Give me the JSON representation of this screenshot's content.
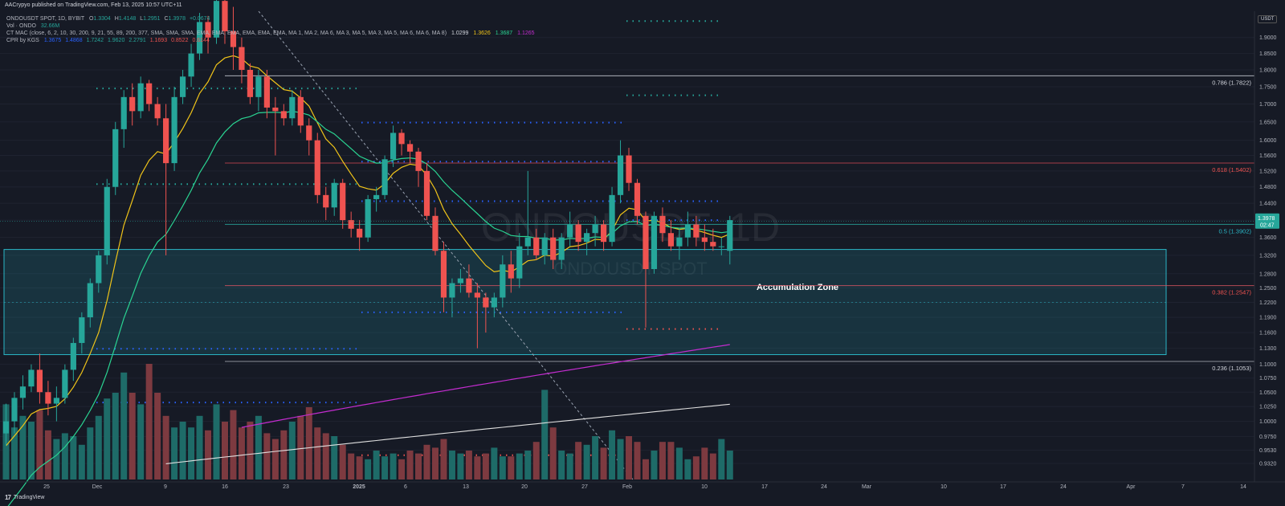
{
  "header": {
    "published": "AACrypyo published on TradingView.com, Feb 13, 2025 10:57 UTC+11",
    "symbol_line": "ONDOUSDT SPOT, 1D, BYBIT",
    "ohlc": {
      "o_label": "O",
      "o": "1.3304",
      "h_label": "H",
      "h": "1.4148",
      "l_label": "L",
      "l": "1.2951",
      "c_label": "C",
      "c": "1.3978",
      "chg": "+0.0674"
    },
    "vol_line": "Vol · ONDO",
    "vol_value": "32.66M",
    "macd_line": "CT MAC (close, 6, 2, 10, 30, 200, 9, 21, 55, 89, 200, 377, SMA, SMA, SMA, EMA, EMA, EMA, EMA, EMA, EMA, MA 1, MA 2, MA 6, MA 3, MA 5, MA 3, MA 5, MA 6, MA 6, MA 8)",
    "macd_values": [
      "1.0299",
      "1.3626",
      "1.3687",
      "1.1265"
    ],
    "cpr_line": "CPR by KGS",
    "cpr_values": [
      "1.3675",
      "1.4868",
      "1.7242",
      "1.9620",
      "2.2791",
      "1.1693",
      "0.8522",
      "0.6144"
    ]
  },
  "usdt_badge": "USDT",
  "watermark": {
    "main": "ONDOUSDT, 1D",
    "sub": "ONDOUSDT SPOT"
  },
  "zone_label": "Accumulation Zone",
  "branding": "TradingView",
  "price_tag": {
    "price": "1.3978",
    "countdown": "02:47",
    "color": "#26a69a"
  },
  "colors": {
    "bg": "#161a25",
    "up": "#26a69a",
    "down": "#ef5350",
    "up_vol": "#1e6b68",
    "down_vol": "#7d3a40",
    "ema_fast": "#f0c419",
    "ema_mid": "#2ad492",
    "ma200": "#c32ccf",
    "ma377": "#e0e0e0",
    "zone": "#1fa7b8",
    "trendline": "#9aa3b2",
    "fib_line": "#a0a4ad",
    "fib_0618": "#c0434d",
    "fib_0382": "#d25460",
    "fib_0786": "#c8ccd4"
  },
  "chart_data": {
    "type": "candlestick",
    "title": "ONDOUSDT SPOT, 1D, BYBIT",
    "y_axis": {
      "scale": "log",
      "ticks": [
        "1.9000",
        "1.8500",
        "1.8000",
        "1.7500",
        "1.7000",
        "1.6500",
        "1.6000",
        "1.5600",
        "1.5200",
        "1.4800",
        "1.4400",
        "1.4000",
        "1.3600",
        "1.3200",
        "1.2800",
        "1.2500",
        "1.2200",
        "1.1900",
        "1.1600",
        "1.1300",
        "1.1000",
        "1.0750",
        "1.0500",
        "1.0250",
        "1.0000",
        "0.9750",
        "0.9530",
        "0.9320"
      ]
    },
    "x_axis": {
      "ticks": [
        "25",
        "Dec",
        "9",
        "16",
        "23",
        "2025",
        "6",
        "13",
        "20",
        "27",
        "Feb",
        "10",
        "17",
        "24",
        "Mar",
        "10",
        "17",
        "24",
        "Apr",
        "7",
        "14"
      ]
    },
    "ohlc": [
      [
        0.98,
        1.03,
        0.96,
        1.0
      ],
      [
        1.0,
        1.05,
        0.98,
        1.04
      ],
      [
        1.04,
        1.08,
        1.02,
        1.06
      ],
      [
        1.06,
        1.1,
        1.05,
        1.09
      ],
      [
        1.09,
        1.12,
        1.03,
        1.05
      ],
      [
        1.05,
        1.07,
        1.01,
        1.03
      ],
      [
        1.03,
        1.06,
        1.0,
        1.04
      ],
      [
        1.04,
        1.1,
        1.03,
        1.09
      ],
      [
        1.09,
        1.15,
        1.07,
        1.14
      ],
      [
        1.14,
        1.2,
        1.12,
        1.19
      ],
      [
        1.19,
        1.27,
        1.17,
        1.26
      ],
      [
        1.26,
        1.33,
        1.24,
        1.32
      ],
      [
        1.32,
        1.5,
        1.3,
        1.48
      ],
      [
        1.48,
        1.65,
        1.46,
        1.63
      ],
      [
        1.63,
        1.74,
        1.58,
        1.72
      ],
      [
        1.72,
        1.76,
        1.64,
        1.68
      ],
      [
        1.68,
        1.78,
        1.66,
        1.76
      ],
      [
        1.76,
        1.77,
        1.68,
        1.7
      ],
      [
        1.7,
        1.72,
        1.64,
        1.66
      ],
      [
        1.66,
        1.7,
        1.32,
        1.54
      ],
      [
        1.54,
        1.75,
        1.52,
        1.72
      ],
      [
        1.72,
        1.8,
        1.7,
        1.78
      ],
      [
        1.78,
        1.88,
        1.75,
        1.85
      ],
      [
        1.85,
        1.98,
        1.83,
        1.95
      ],
      [
        1.95,
        1.97,
        1.85,
        1.9
      ],
      [
        1.9,
        2.05,
        1.88,
        2.02
      ],
      [
        2.02,
        2.05,
        1.88,
        1.92
      ],
      [
        1.92,
        2.0,
        1.8,
        1.87
      ],
      [
        1.87,
        1.9,
        1.76,
        1.8
      ],
      [
        1.8,
        1.82,
        1.7,
        1.72
      ],
      [
        1.72,
        1.8,
        1.68,
        1.78
      ],
      [
        1.78,
        1.8,
        1.66,
        1.69
      ],
      [
        1.69,
        1.72,
        1.56,
        1.68
      ],
      [
        1.68,
        1.7,
        1.64,
        1.66
      ],
      [
        1.66,
        1.74,
        1.64,
        1.72
      ],
      [
        1.72,
        1.74,
        1.62,
        1.64
      ],
      [
        1.64,
        1.66,
        1.56,
        1.6
      ],
      [
        1.6,
        1.62,
        1.44,
        1.46
      ],
      [
        1.46,
        1.48,
        1.4,
        1.43
      ],
      [
        1.43,
        1.5,
        1.41,
        1.49
      ],
      [
        1.49,
        1.5,
        1.38,
        1.4
      ],
      [
        1.4,
        1.42,
        1.36,
        1.38
      ],
      [
        1.38,
        1.4,
        1.33,
        1.36
      ],
      [
        1.36,
        1.46,
        1.35,
        1.45
      ],
      [
        1.45,
        1.48,
        1.42,
        1.46
      ],
      [
        1.46,
        1.56,
        1.45,
        1.55
      ],
      [
        1.55,
        1.64,
        1.53,
        1.62
      ],
      [
        1.62,
        1.63,
        1.56,
        1.59
      ],
      [
        1.59,
        1.6,
        1.54,
        1.57
      ],
      [
        1.57,
        1.58,
        1.48,
        1.52
      ],
      [
        1.52,
        1.54,
        1.4,
        1.41
      ],
      [
        1.41,
        1.43,
        1.32,
        1.33
      ],
      [
        1.33,
        1.35,
        1.2,
        1.23
      ],
      [
        1.23,
        1.27,
        1.19,
        1.26
      ],
      [
        1.26,
        1.29,
        1.24,
        1.27
      ],
      [
        1.27,
        1.3,
        1.23,
        1.24
      ],
      [
        1.24,
        1.26,
        1.13,
        1.23
      ],
      [
        1.23,
        1.24,
        1.16,
        1.21
      ],
      [
        1.21,
        1.24,
        1.19,
        1.23
      ],
      [
        1.23,
        1.32,
        1.21,
        1.3
      ],
      [
        1.3,
        1.33,
        1.24,
        1.27
      ],
      [
        1.27,
        1.37,
        1.25,
        1.34
      ],
      [
        1.34,
        1.52,
        1.32,
        1.36
      ],
      [
        1.36,
        1.38,
        1.31,
        1.32
      ],
      [
        1.32,
        1.37,
        1.3,
        1.36
      ],
      [
        1.36,
        1.38,
        1.29,
        1.31
      ],
      [
        1.31,
        1.37,
        1.29,
        1.36
      ],
      [
        1.36,
        1.42,
        1.34,
        1.39
      ],
      [
        1.39,
        1.4,
        1.33,
        1.35
      ],
      [
        1.35,
        1.38,
        1.32,
        1.37
      ],
      [
        1.37,
        1.41,
        1.34,
        1.39
      ],
      [
        1.39,
        1.4,
        1.33,
        1.35
      ],
      [
        1.35,
        1.48,
        1.34,
        1.46
      ],
      [
        1.46,
        1.6,
        1.44,
        1.56
      ],
      [
        1.56,
        1.58,
        1.47,
        1.49
      ],
      [
        1.49,
        1.5,
        1.39,
        1.41
      ],
      [
        1.41,
        1.42,
        1.17,
        1.29
      ],
      [
        1.29,
        1.42,
        1.28,
        1.41
      ],
      [
        1.41,
        1.43,
        1.35,
        1.37
      ],
      [
        1.37,
        1.4,
        1.33,
        1.34
      ],
      [
        1.34,
        1.38,
        1.31,
        1.36
      ],
      [
        1.36,
        1.42,
        1.34,
        1.39
      ],
      [
        1.39,
        1.41,
        1.34,
        1.36
      ],
      [
        1.36,
        1.39,
        1.33,
        1.35
      ],
      [
        1.35,
        1.38,
        1.33,
        1.34
      ],
      [
        1.34,
        1.36,
        1.32,
        1.34
      ],
      [
        1.33,
        1.41,
        1.3,
        1.4
      ]
    ],
    "volume": [
      26,
      18,
      22,
      20,
      24,
      17,
      14,
      16,
      15,
      12,
      18,
      22,
      28,
      30,
      37,
      30,
      26,
      40,
      30,
      22,
      18,
      20,
      18,
      22,
      17,
      26,
      20,
      24,
      18,
      20,
      22,
      16,
      14,
      17,
      20,
      22,
      25,
      18,
      16,
      15,
      12,
      9,
      8,
      7,
      10,
      8,
      9,
      7,
      10,
      9,
      12,
      11,
      14,
      10,
      9,
      10,
      8,
      9,
      11,
      8,
      8,
      9,
      10,
      13,
      31,
      18,
      10,
      9,
      13,
      12,
      15,
      11,
      17,
      14,
      15,
      13,
      7,
      10,
      13,
      13,
      11,
      7,
      8,
      11,
      9,
      14,
      10
    ],
    "fib_levels": [
      {
        "label": "0.786 (1.7822)",
        "value": 1.7822
      },
      {
        "label": "0.618 (1.5402)",
        "value": 1.5402
      },
      {
        "label": "0.5 (1.3902)",
        "value": 1.3902
      },
      {
        "label": "0.382 (1.2547)",
        "value": 1.2547
      },
      {
        "label": "0.236 (1.1053)",
        "value": 1.1053
      }
    ],
    "accumulation_zone": {
      "top": 1.333,
      "bottom": 1.118,
      "mid": 1.22
    },
    "current_price": 1.3978
  }
}
